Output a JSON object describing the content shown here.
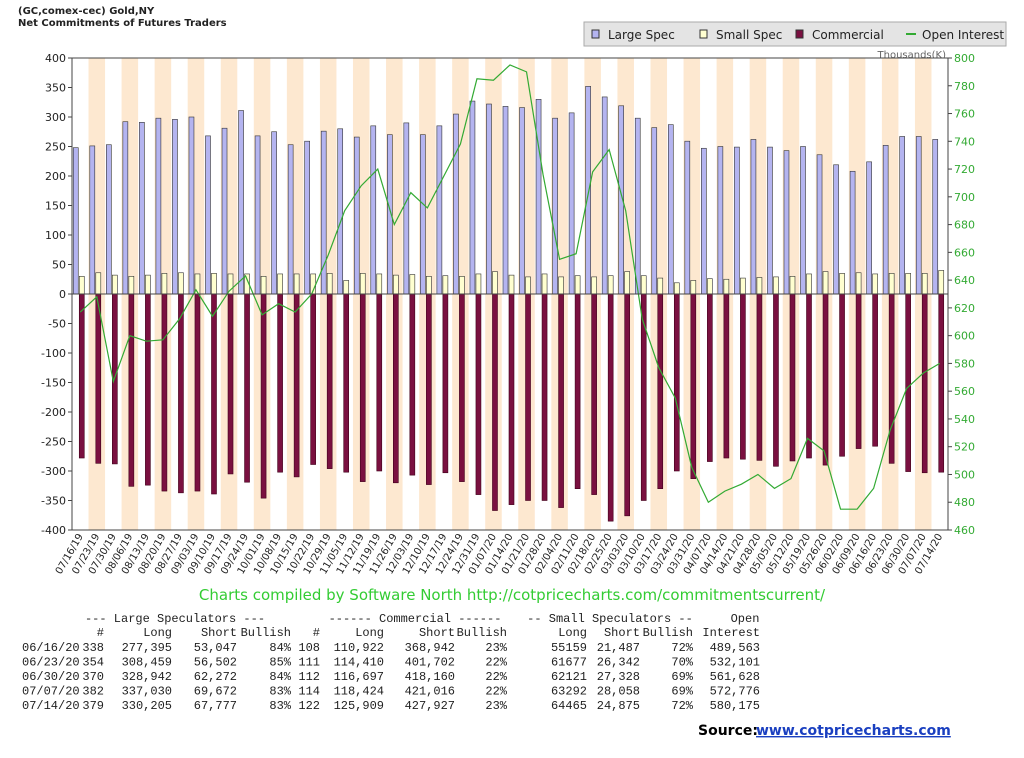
{
  "chart_data": {
    "type": "bar",
    "title": "(GC,comex-cec) Gold,NY",
    "subtitle": "Net Commitments of Futures Traders",
    "categories": [
      "07/16/19",
      "07/23/19",
      "07/30/19",
      "08/06/19",
      "08/13/19",
      "08/20/19",
      "08/27/19",
      "09/03/19",
      "09/10/19",
      "09/17/19",
      "09/24/19",
      "10/01/19",
      "10/08/19",
      "10/15/19",
      "10/22/19",
      "10/29/19",
      "11/05/19",
      "11/12/19",
      "11/19/19",
      "11/26/19",
      "12/03/19",
      "12/10/19",
      "12/17/19",
      "12/24/19",
      "12/31/19",
      "01/07/20",
      "01/14/20",
      "01/21/20",
      "01/28/20",
      "02/04/20",
      "02/11/20",
      "02/18/20",
      "02/25/20",
      "03/03/20",
      "03/10/20",
      "03/17/20",
      "03/24/20",
      "03/31/20",
      "04/07/20",
      "04/14/20",
      "04/21/20",
      "04/28/20",
      "05/05/20",
      "05/12/20",
      "05/19/20",
      "05/26/20",
      "06/02/20",
      "06/09/20",
      "06/16/20",
      "06/23/20",
      "06/30/20",
      "07/07/20",
      "07/14/20"
    ],
    "series": [
      {
        "name": "Large Spec",
        "color": "#b4b4f0",
        "values": [
          248,
          251,
          253,
          292,
          291,
          298,
          296,
          300,
          268,
          281,
          311,
          268,
          275,
          253,
          259,
          276,
          280,
          266,
          285,
          270,
          290,
          270,
          285,
          305,
          327,
          322,
          318,
          316,
          330,
          298,
          307,
          352,
          334,
          319,
          298,
          282,
          287,
          259,
          247,
          250,
          249,
          262,
          249,
          243,
          250,
          236,
          219,
          208,
          224,
          252,
          267,
          267,
          262
        ]
      },
      {
        "name": "Small Spec",
        "color": "#ffffd0",
        "values": [
          30,
          36,
          32,
          30,
          32,
          35,
          36,
          34,
          35,
          34,
          34,
          30,
          34,
          34,
          34,
          35,
          23,
          35,
          34,
          32,
          33,
          30,
          31,
          30,
          34,
          38,
          32,
          29,
          34,
          29,
          31,
          29,
          31,
          38,
          31,
          27,
          19,
          23,
          26,
          25,
          27,
          28,
          29,
          30,
          34,
          38,
          35,
          36,
          34,
          35,
          35,
          35,
          40
        ]
      },
      {
        "name": "Commercial",
        "color": "#7a1040",
        "values": [
          -278,
          -287,
          -288,
          -326,
          -324,
          -334,
          -337,
          -334,
          -339,
          -305,
          -319,
          -346,
          -302,
          -310,
          -289,
          -296,
          -302,
          -318,
          -300,
          -320,
          -307,
          -323,
          -303,
          -318,
          -340,
          -367,
          -357,
          -350,
          -350,
          -362,
          -330,
          -340,
          -385,
          -376,
          -350,
          -330,
          -300,
          -313,
          -284,
          -278,
          -280,
          -282,
          -292,
          -283,
          -278,
          -290,
          -275,
          -262,
          -258,
          -287,
          -301,
          -303,
          -302
        ]
      },
      {
        "name": "Open Interest",
        "color": "#33aa33",
        "axis": "y2",
        "values": [
          617,
          628,
          567,
          600,
          596,
          597,
          612,
          633,
          614,
          632,
          643,
          615,
          623,
          617,
          630,
          658,
          690,
          708,
          720,
          680,
          703,
          692,
          715,
          738,
          785,
          784,
          795,
          790,
          716,
          655,
          659,
          718,
          734,
          690,
          612,
          577,
          555,
          505,
          480,
          488,
          493,
          500,
          490,
          497,
          526,
          517,
          475,
          475,
          490,
          532,
          562,
          573,
          580
        ]
      }
    ],
    "ylim": [
      -400,
      400
    ],
    "yticks": [
      400,
      350,
      300,
      250,
      200,
      150,
      100,
      50,
      0,
      -50,
      -100,
      -150,
      -200,
      -250,
      -300,
      -350,
      -400
    ],
    "y2lim": [
      460,
      800
    ],
    "y2ticks": [
      800,
      780,
      760,
      740,
      720,
      700,
      680,
      660,
      640,
      620,
      600,
      580,
      560,
      540,
      520,
      500,
      480,
      460
    ],
    "y2label": "Thousands(K)",
    "annotation": "Charts compiled by Software North  http://cotpricecharts.com/commitmentscurrent/"
  },
  "table": {
    "groups": [
      "--- Large Speculators ---",
      "------ Commercial ------",
      "-- Small Speculators --",
      "Open"
    ],
    "header": [
      "#",
      "Long",
      "Short",
      "Bullish",
      "#",
      "Long",
      "Short",
      "Bullish",
      "Long",
      "Short",
      "Bullish",
      "Interest"
    ],
    "rows": [
      [
        "06/16/20",
        "338",
        "277,395",
        "53,047",
        "84%",
        "108",
        "110,922",
        "368,942",
        "23%",
        "55159",
        "21,487",
        "72%",
        "489,563"
      ],
      [
        "06/23/20",
        "354",
        "308,459",
        "56,502",
        "85%",
        "111",
        "114,410",
        "401,702",
        "22%",
        "61677",
        "26,342",
        "70%",
        "532,101"
      ],
      [
        "06/30/20",
        "370",
        "328,942",
        "62,272",
        "84%",
        "112",
        "116,697",
        "418,160",
        "22%",
        "62121",
        "27,328",
        "69%",
        "561,628"
      ],
      [
        "07/07/20",
        "382",
        "337,030",
        "69,672",
        "83%",
        "114",
        "118,424",
        "421,016",
        "22%",
        "63292",
        "28,058",
        "69%",
        "572,776"
      ],
      [
        "07/14/20",
        "379",
        "330,205",
        "67,777",
        "83%",
        "122",
        "125,909",
        "427,927",
        "23%",
        "64465",
        "24,875",
        "72%",
        "580,175"
      ]
    ]
  },
  "source": {
    "label": "Source:",
    "link": "www.cotpricecharts.com"
  }
}
